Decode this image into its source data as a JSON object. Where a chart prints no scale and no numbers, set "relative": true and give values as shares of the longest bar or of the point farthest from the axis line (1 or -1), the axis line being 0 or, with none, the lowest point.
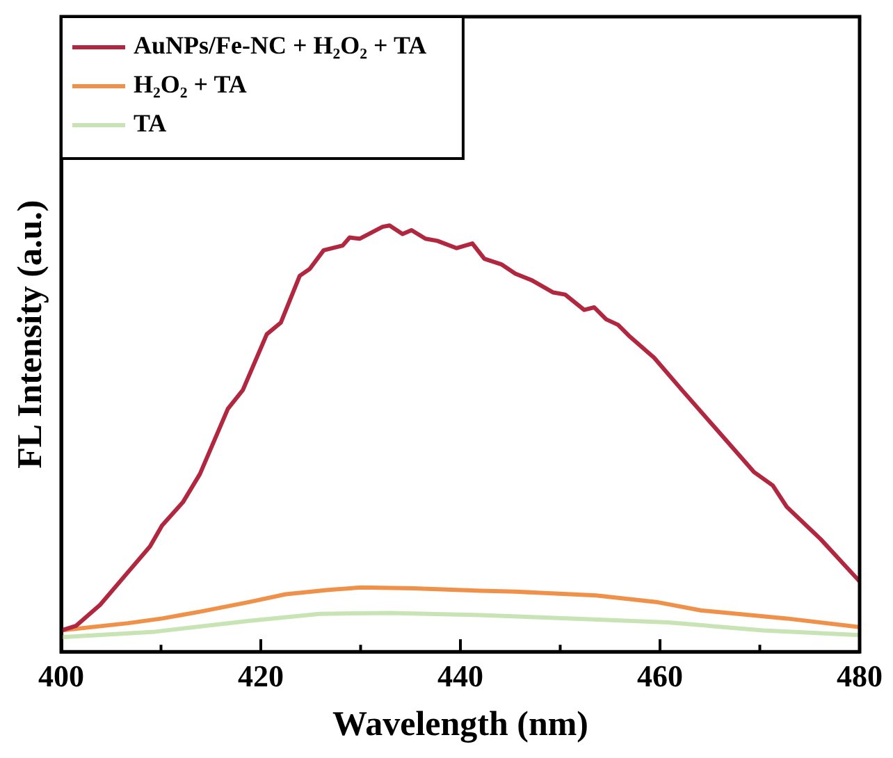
{
  "chart_data": {
    "type": "line",
    "relative": true,
    "xlabel": "Wavelength (nm)",
    "ylabel": "FL Intensity (a.u.)",
    "xlim": [
      400,
      480
    ],
    "xticks": [
      400,
      {
        "value": 410,
        "label": null
      },
      420,
      {
        "value": 430,
        "label": null
      },
      440,
      {
        "value": 450,
        "label": null
      },
      460,
      {
        "value": 470,
        "label": null
      },
      480
    ],
    "legend": "top left",
    "grid": false,
    "marker": "none",
    "line_style": "solid",
    "series": [
      {
        "name": "AuNPs/Fe-NC + H₂O₂ + TA",
        "color": "#b0273f",
        "x": [
          400,
          401.5,
          403.9,
          406.7,
          408.9,
          410.1,
          412.2,
          413.9,
          416.7,
          418.2,
          420.6,
          422.0,
          423.9,
          424.9,
          426.3,
          428.2,
          428.9,
          429.9,
          432.2,
          432.9,
          434.2,
          435.1,
          436.5,
          437.7,
          439.6,
          441.2,
          442.4,
          444.1,
          445.5,
          447.2,
          449.3,
          450.5,
          452.4,
          453.4,
          454.6,
          455.8,
          457.0,
          459.4,
          462.2,
          465.5,
          469.4,
          471.3,
          472.7,
          476.1,
          480
        ],
        "values": [
          0.05,
          0.061,
          0.11,
          0.187,
          0.247,
          0.296,
          0.351,
          0.417,
          0.57,
          0.614,
          0.745,
          0.772,
          0.882,
          0.898,
          0.942,
          0.953,
          0.972,
          0.969,
          0.997,
          1.0,
          0.98,
          0.989,
          0.969,
          0.964,
          0.947,
          0.958,
          0.922,
          0.909,
          0.887,
          0.871,
          0.843,
          0.838,
          0.802,
          0.808,
          0.78,
          0.767,
          0.739,
          0.69,
          0.614,
          0.526,
          0.422,
          0.39,
          0.34,
          0.264,
          0.165
        ]
      },
      {
        "name": "H₂O₂ + TA",
        "color": "#f0914a",
        "x": [
          400,
          406.7,
          410.1,
          413.9,
          418.7,
          422.5,
          426.8,
          430.1,
          435.3,
          442,
          445.5,
          453.6,
          459.8,
          464.1,
          472.7,
          480
        ],
        "values": [
          0.05,
          0.067,
          0.078,
          0.094,
          0.116,
          0.135,
          0.145,
          0.151,
          0.149,
          0.143,
          0.141,
          0.132,
          0.116,
          0.097,
          0.078,
          0.058
        ]
      },
      {
        "name": "TA",
        "color": "#c8e3b4",
        "x": [
          400,
          409.4,
          418.7,
          425.9,
          433,
          442,
          451.2,
          460.8,
          470.3,
          480
        ],
        "values": [
          0.034,
          0.047,
          0.072,
          0.089,
          0.091,
          0.086,
          0.078,
          0.069,
          0.05,
          0.039
        ]
      }
    ]
  }
}
